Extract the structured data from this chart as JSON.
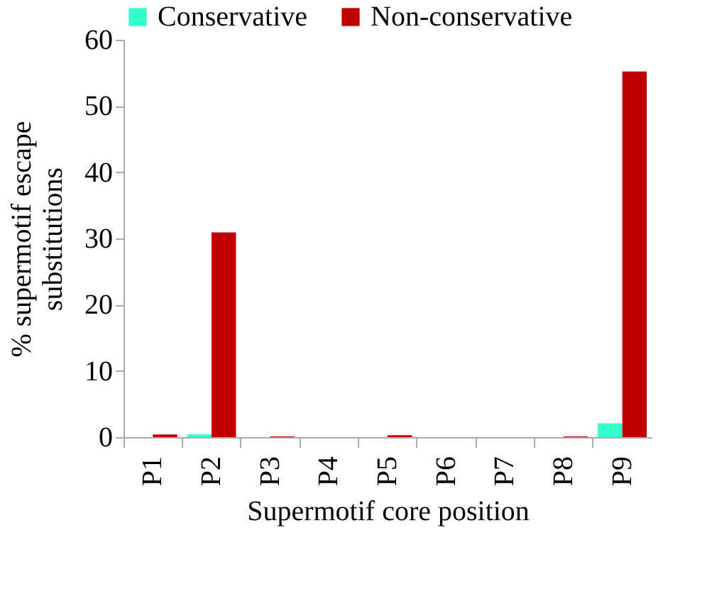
{
  "chart_data": {
    "type": "bar",
    "xlabel": "Supermotif core position",
    "ylabel": "% supermotif escape substitutions",
    "categories": [
      "P1",
      "P2",
      "P3",
      "P4",
      "P5",
      "P6",
      "P7",
      "P8",
      "P9"
    ],
    "series": [
      {
        "name": "Conservative",
        "color": "#33ffcc",
        "values": [
          0,
          0.4,
          0,
          0,
          0,
          0,
          0,
          0,
          2.1
        ]
      },
      {
        "name": "Non-conservative",
        "color": "#c00000",
        "values": [
          0.4,
          30.9,
          0.1,
          0,
          0.3,
          0,
          0,
          0.1,
          55.2
        ]
      }
    ],
    "ylim": [
      0,
      60
    ],
    "yticks": [
      0,
      10,
      20,
      30,
      40,
      50,
      60
    ],
    "grid": false,
    "legend": "top"
  }
}
